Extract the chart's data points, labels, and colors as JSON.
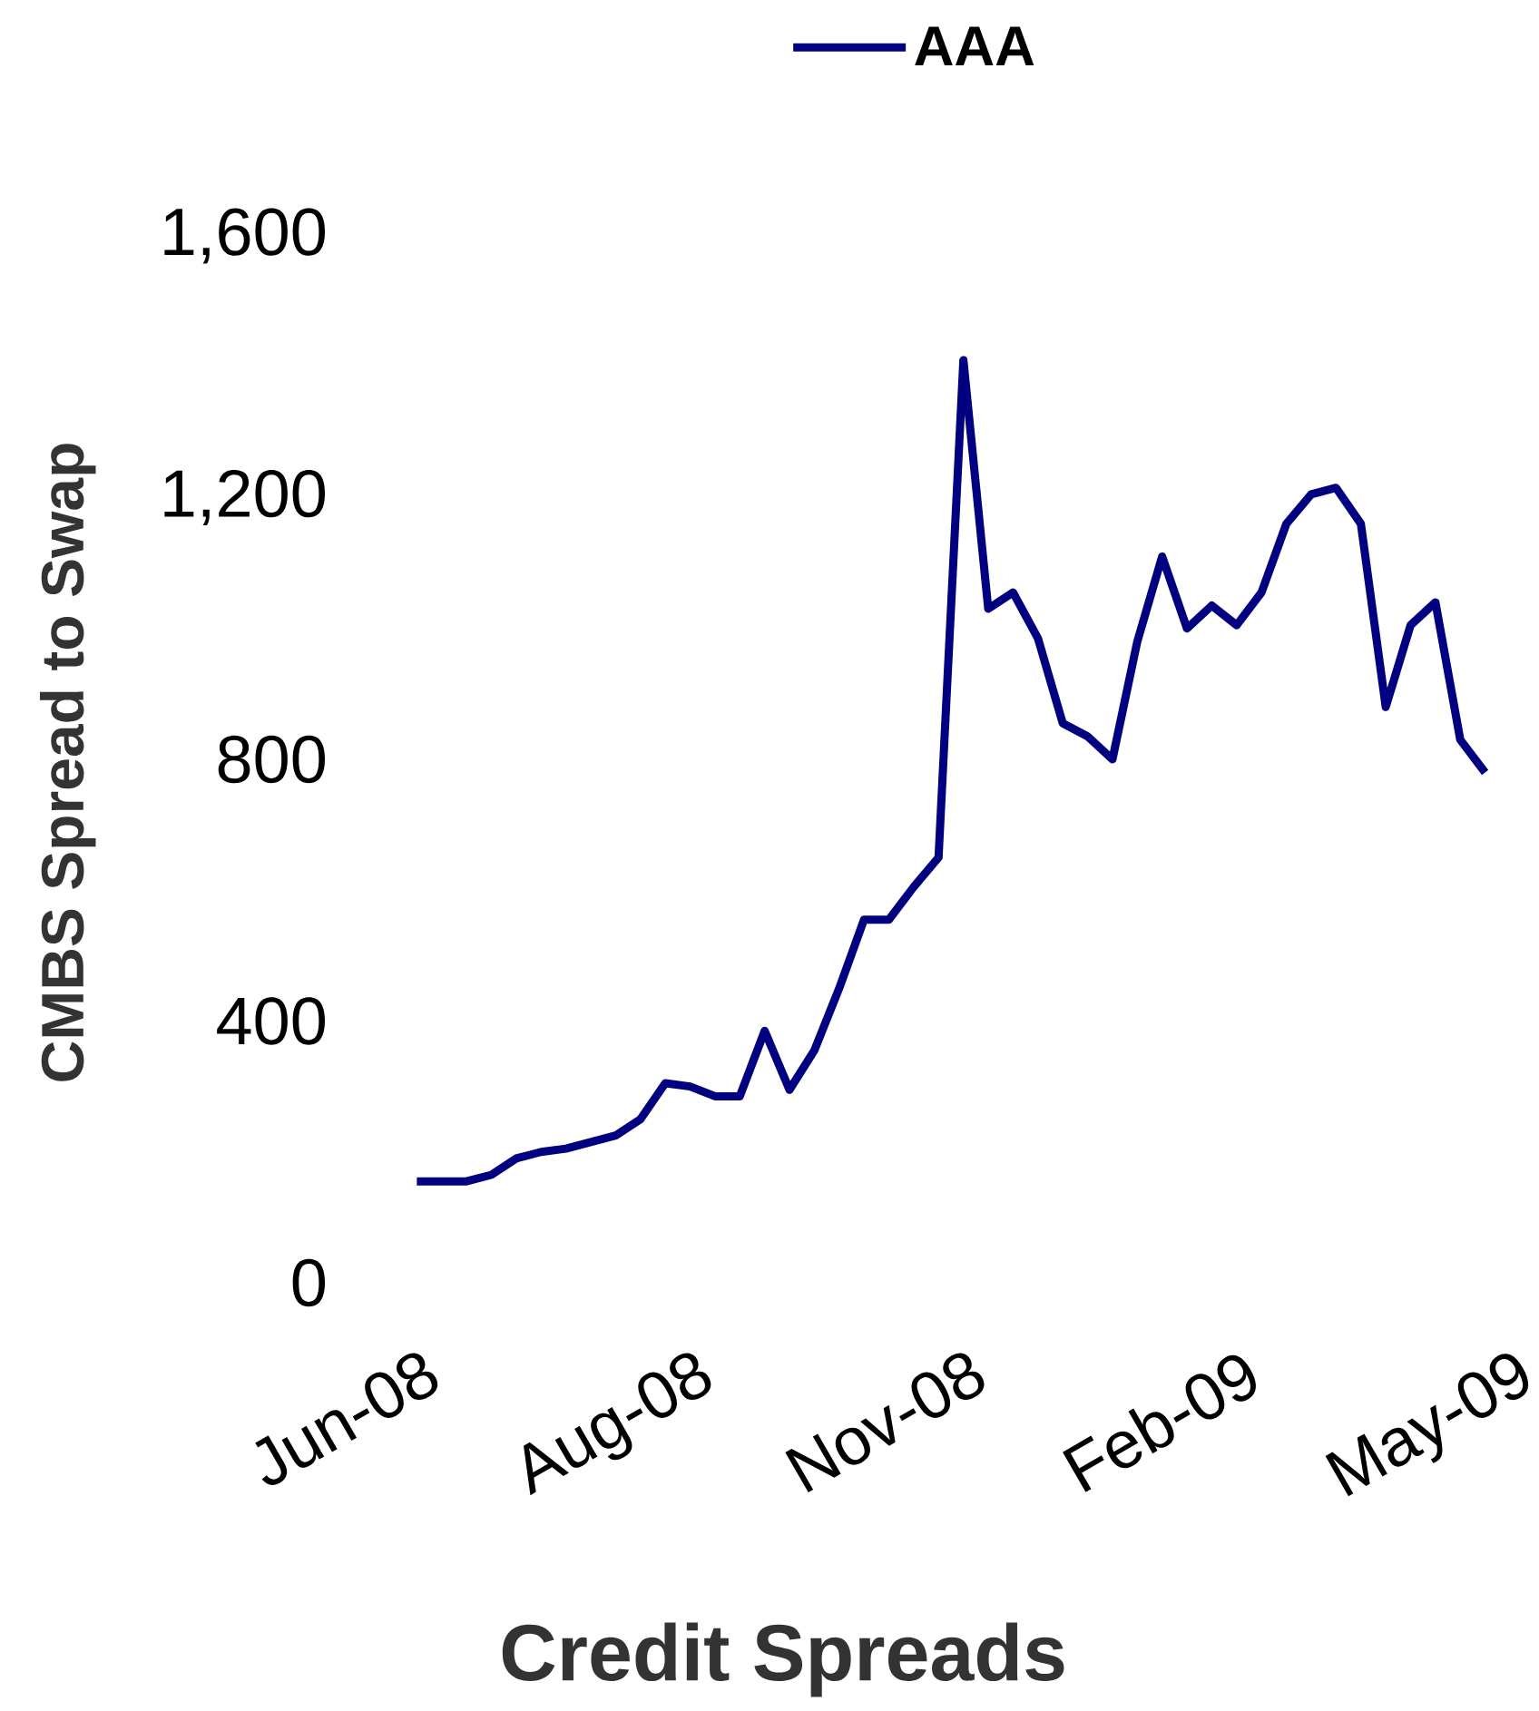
{
  "chart_data": {
    "type": "line",
    "xlabel": "Credit Spreads",
    "ylabel": "CMBS Spread to Swap",
    "categories": [
      "Jun-08",
      null,
      null,
      null,
      null,
      null,
      null,
      null,
      null,
      null,
      null,
      "Aug-08",
      null,
      null,
      null,
      null,
      null,
      null,
      null,
      null,
      null,
      null,
      "Nov-08",
      null,
      null,
      null,
      null,
      null,
      null,
      null,
      null,
      null,
      null,
      "Feb-09",
      null,
      null,
      null,
      null,
      null,
      null,
      null,
      null,
      null,
      null,
      "May-09"
    ],
    "series": [
      {
        "name": "AAA",
        "color": "#000080",
        "values": [
          155,
          155,
          155,
          165,
          190,
          200,
          205,
          215,
          225,
          250,
          305,
          300,
          285,
          285,
          385,
          295,
          355,
          450,
          555,
          555,
          605,
          650,
          1410,
          1030,
          1055,
          985,
          855,
          835,
          800,
          980,
          1110,
          1000,
          1035,
          1005,
          1055,
          1160,
          1205,
          1215,
          1160,
          880,
          1005,
          1040,
          830,
          780,
          null
        ]
      }
    ],
    "ylim": [
      0,
      1600
    ],
    "yticks": [
      0,
      {
        "value": 400,
        "label": "400"
      },
      {
        "value": 800,
        "label": "800"
      },
      {
        "value": 1200,
        "label": "1,200"
      },
      {
        "value": 1600,
        "label": "1,600"
      }
    ],
    "legend": "top"
  }
}
